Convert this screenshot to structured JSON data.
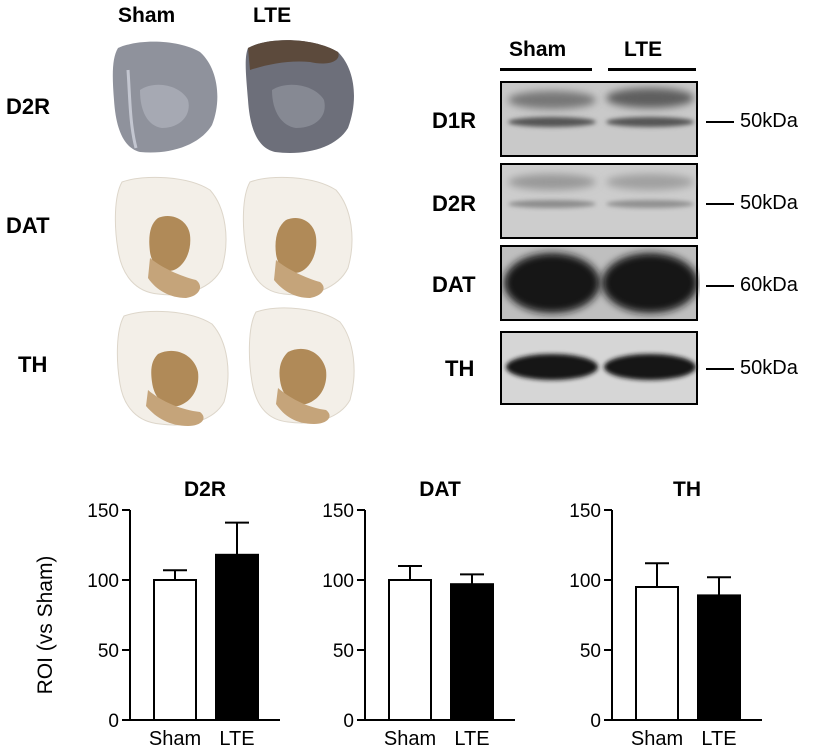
{
  "ihc": {
    "columns": [
      "Sham",
      "LTE"
    ],
    "rows": [
      "D2R",
      "DAT",
      "TH"
    ],
    "colors": {
      "d2r_tissue": "#8a8d99",
      "d2r_dark": "#5c4a3c",
      "dab": "#b08a58",
      "section": "#f3efe8"
    }
  },
  "western": {
    "columns": [
      "Sham",
      "LTE"
    ],
    "blots": [
      {
        "label": "D1R",
        "size": "50kDa"
      },
      {
        "label": "D2R",
        "size": "50kDa"
      },
      {
        "label": "DAT",
        "size": "60kDa"
      },
      {
        "label": "TH",
        "size": "50kDa"
      }
    ]
  },
  "chart_data": [
    {
      "type": "bar",
      "title": "D2R",
      "categories": [
        "Sham",
        "LTE"
      ],
      "values": [
        100,
        118
      ],
      "errors": [
        7,
        23
      ],
      "ylabel": "ROI (vs Sham)",
      "ylim": [
        0,
        150
      ],
      "yticks": [
        0,
        50,
        100,
        150
      ],
      "bar_colors": [
        "#ffffff",
        "#000000"
      ]
    },
    {
      "type": "bar",
      "title": "DAT",
      "categories": [
        "Sham",
        "LTE"
      ],
      "values": [
        100,
        97
      ],
      "errors": [
        10,
        7
      ],
      "ylabel": "",
      "ylim": [
        0,
        150
      ],
      "yticks": [
        0,
        50,
        100,
        150
      ],
      "bar_colors": [
        "#ffffff",
        "#000000"
      ]
    },
    {
      "type": "bar",
      "title": "TH",
      "categories": [
        "Sham",
        "LTE"
      ],
      "values": [
        95,
        89
      ],
      "errors": [
        17,
        13
      ],
      "ylabel": "",
      "ylim": [
        0,
        150
      ],
      "yticks": [
        0,
        50,
        100,
        150
      ],
      "bar_colors": [
        "#ffffff",
        "#000000"
      ]
    }
  ]
}
